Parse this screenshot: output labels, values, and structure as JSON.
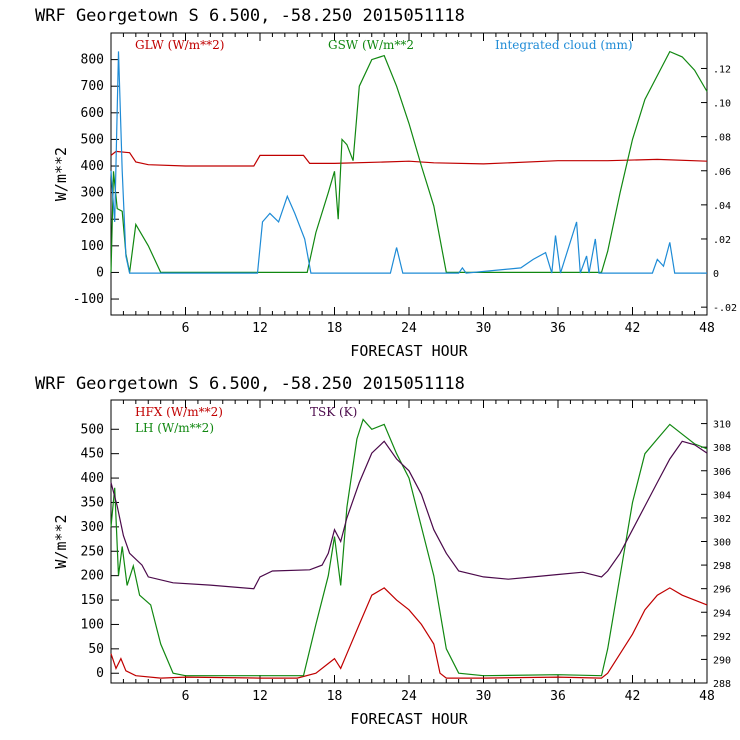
{
  "chart_data": [
    {
      "type": "line",
      "title": "WRF   Georgetown S   6.500, -58.250  2015051118",
      "xlabel": "FORECAST HOUR",
      "ylabel": "W/m**2",
      "xlim": [
        0,
        48
      ],
      "xticks": [
        6,
        12,
        18,
        24,
        30,
        36,
        42,
        48
      ],
      "ylim": [
        -160,
        900
      ],
      "yticks": [
        -100,
        0,
        100,
        200,
        300,
        400,
        500,
        600,
        700,
        800
      ],
      "y2lim": [
        -0.0246,
        0.1408
      ],
      "y2ticks": [
        -0.02,
        0,
        0.02,
        0.04,
        0.06,
        0.08,
        0.1,
        0.12
      ],
      "y2ticklabels": [
        "-.02",
        "0",
        ".02",
        ".04",
        ".06",
        ".08",
        ".10",
        ".12"
      ],
      "series": [
        {
          "name": "GLW (W/m**2)",
          "color": "#c00000",
          "axis": "left",
          "points": [
            [
              0,
              440
            ],
            [
              0.4,
              455
            ],
            [
              1.5,
              450
            ],
            [
              2.0,
              415
            ],
            [
              3,
              405
            ],
            [
              6,
              400
            ],
            [
              11.5,
              400
            ],
            [
              12,
              440
            ],
            [
              15.5,
              440
            ],
            [
              16,
              410
            ],
            [
              18,
              410
            ],
            [
              22,
              415
            ],
            [
              24,
              418
            ],
            [
              26,
              412
            ],
            [
              30,
              408
            ],
            [
              36,
              420
            ],
            [
              40,
              420
            ],
            [
              44,
              425
            ],
            [
              48,
              418
            ]
          ]
        },
        {
          "name": "GSW (W/m**2",
          "color": "#118811",
          "axis": "left",
          "points": [
            [
              0,
              0
            ],
            [
              0.2,
              380
            ],
            [
              0.5,
              240
            ],
            [
              0.9,
              230
            ],
            [
              1.2,
              70
            ],
            [
              1.5,
              0
            ],
            [
              2,
              180
            ],
            [
              3,
              100
            ],
            [
              4,
              0
            ],
            [
              15.8,
              0
            ],
            [
              16.5,
              150
            ],
            [
              17.5,
              300
            ],
            [
              18,
              380
            ],
            [
              18.3,
              200
            ],
            [
              18.6,
              500
            ],
            [
              19,
              480
            ],
            [
              19.5,
              420
            ],
            [
              20,
              700
            ],
            [
              21,
              800
            ],
            [
              22,
              815
            ],
            [
              23,
              700
            ],
            [
              24,
              560
            ],
            [
              25,
              400
            ],
            [
              26,
              250
            ],
            [
              27,
              0
            ],
            [
              39.5,
              0
            ],
            [
              40,
              80
            ],
            [
              41,
              300
            ],
            [
              42,
              500
            ],
            [
              43,
              650
            ],
            [
              44,
              740
            ],
            [
              45,
              830
            ],
            [
              46,
              810
            ],
            [
              47,
              760
            ],
            [
              48,
              680
            ]
          ]
        },
        {
          "name": "Integrated cloud (mm)",
          "color": "#1e8bd6",
          "axis": "right",
          "points": [
            [
              0,
              0.06
            ],
            [
              0.3,
              0.03
            ],
            [
              0.6,
              0.13
            ],
            [
              0.9,
              0.06
            ],
            [
              1.2,
              0.01
            ],
            [
              1.5,
              0
            ],
            [
              11.8,
              0
            ],
            [
              12.2,
              0.03
            ],
            [
              12.8,
              0.035
            ],
            [
              13.5,
              0.03
            ],
            [
              14.2,
              0.045
            ],
            [
              14.8,
              0.035
            ],
            [
              15.6,
              0.02
            ],
            [
              16.1,
              0
            ],
            [
              22.5,
              0
            ],
            [
              23,
              0.015
            ],
            [
              23.5,
              0
            ],
            [
              28,
              0
            ],
            [
              28.3,
              0.003
            ],
            [
              28.6,
              0
            ],
            [
              33,
              0.003
            ],
            [
              34,
              0.008
            ],
            [
              35,
              0.012
            ],
            [
              35.5,
              0
            ],
            [
              35.8,
              0.022
            ],
            [
              36.2,
              0
            ],
            [
              37.5,
              0.03
            ],
            [
              37.8,
              0
            ],
            [
              38.3,
              0.01
            ],
            [
              38.5,
              0
            ],
            [
              39,
              0.02
            ],
            [
              39.3,
              0
            ],
            [
              43.6,
              0
            ],
            [
              44,
              0.008
            ],
            [
              44.5,
              0.004
            ],
            [
              45,
              0.018
            ],
            [
              45.4,
              0
            ],
            [
              48,
              0
            ]
          ]
        }
      ]
    },
    {
      "type": "line",
      "title": "WRF   Georgetown S   6.500, -58.250  2015051118",
      "xlabel": "FORECAST HOUR",
      "ylabel": "W/m**2",
      "xlim": [
        0,
        48
      ],
      "xticks": [
        6,
        12,
        18,
        24,
        30,
        36,
        42,
        48
      ],
      "ylim": [
        -20,
        560
      ],
      "yticks": [
        0,
        50,
        100,
        150,
        200,
        250,
        300,
        350,
        400,
        450,
        500
      ],
      "y2lim": [
        288,
        312
      ],
      "y2ticks": [
        288,
        290,
        292,
        294,
        296,
        298,
        300,
        302,
        304,
        306,
        308,
        310
      ],
      "y2ticklabels": [
        "288",
        "290",
        "292",
        "294",
        "296",
        "298",
        "300",
        "302",
        "304",
        "306",
        "308",
        "310"
      ],
      "series": [
        {
          "name": "HFX (W/m**2)",
          "color": "#c00000",
          "axis": "left",
          "points": [
            [
              0,
              40
            ],
            [
              0.4,
              10
            ],
            [
              0.8,
              30
            ],
            [
              1.2,
              5
            ],
            [
              2,
              -5
            ],
            [
              4,
              -10
            ],
            [
              6,
              -8
            ],
            [
              12,
              -10
            ],
            [
              15,
              -10
            ],
            [
              16.5,
              0
            ],
            [
              17.5,
              20
            ],
            [
              18,
              30
            ],
            [
              18.5,
              10
            ],
            [
              19,
              40
            ],
            [
              20,
              100
            ],
            [
              21,
              160
            ],
            [
              22,
              175
            ],
            [
              23,
              150
            ],
            [
              24,
              130
            ],
            [
              25,
              100
            ],
            [
              26,
              60
            ],
            [
              26.5,
              0
            ],
            [
              27,
              -10
            ],
            [
              30,
              -10
            ],
            [
              36,
              -8
            ],
            [
              39.5,
              -10
            ],
            [
              40,
              0
            ],
            [
              41,
              40
            ],
            [
              42,
              80
            ],
            [
              43,
              130
            ],
            [
              44,
              160
            ],
            [
              45,
              175
            ],
            [
              46,
              160
            ],
            [
              47,
              150
            ],
            [
              48,
              140
            ]
          ]
        },
        {
          "name": "LH  (W/m**2)",
          "color": "#118811",
          "axis": "left",
          "points": [
            [
              0,
              300
            ],
            [
              0.3,
              380
            ],
            [
              0.6,
              200
            ],
            [
              0.9,
              260
            ],
            [
              1.3,
              180
            ],
            [
              1.8,
              220
            ],
            [
              2.3,
              160
            ],
            [
              3.2,
              140
            ],
            [
              4,
              60
            ],
            [
              5,
              0
            ],
            [
              6,
              -5
            ],
            [
              12,
              -5
            ],
            [
              15.5,
              -5
            ],
            [
              16.5,
              100
            ],
            [
              17.5,
              200
            ],
            [
              18,
              280
            ],
            [
              18.5,
              180
            ],
            [
              19,
              340
            ],
            [
              19.8,
              480
            ],
            [
              20.3,
              520
            ],
            [
              21,
              500
            ],
            [
              22,
              510
            ],
            [
              23,
              450
            ],
            [
              24,
              400
            ],
            [
              25,
              300
            ],
            [
              26,
              200
            ],
            [
              27,
              50
            ],
            [
              28,
              0
            ],
            [
              30,
              -5
            ],
            [
              36,
              -3
            ],
            [
              39.5,
              -5
            ],
            [
              40,
              50
            ],
            [
              41,
              200
            ],
            [
              42,
              350
            ],
            [
              43,
              450
            ],
            [
              44,
              480
            ],
            [
              45,
              510
            ],
            [
              46,
              490
            ],
            [
              47,
              470
            ],
            [
              48,
              460
            ]
          ]
        },
        {
          "name": "TSK (K)",
          "color": "#4b0a4b",
          "axis": "right",
          "points": [
            [
              0,
              305
            ],
            [
              0.5,
              303
            ],
            [
              1,
              300.5
            ],
            [
              1.5,
              299
            ],
            [
              2.5,
              298
            ],
            [
              3,
              297
            ],
            [
              5,
              296.5
            ],
            [
              8,
              296.3
            ],
            [
              11.5,
              296
            ],
            [
              12,
              297
            ],
            [
              13,
              297.5
            ],
            [
              16,
              297.6
            ],
            [
              17,
              298
            ],
            [
              17.5,
              299
            ],
            [
              18,
              301
            ],
            [
              18.5,
              300
            ],
            [
              19,
              302
            ],
            [
              20,
              305
            ],
            [
              21,
              307.5
            ],
            [
              22,
              308.5
            ],
            [
              23,
              307
            ],
            [
              24,
              306
            ],
            [
              25,
              304
            ],
            [
              26,
              301
            ],
            [
              27,
              299
            ],
            [
              28,
              297.5
            ],
            [
              30,
              297
            ],
            [
              32,
              296.8
            ],
            [
              34,
              297
            ],
            [
              36,
              297.2
            ],
            [
              38,
              297.4
            ],
            [
              39.5,
              297
            ],
            [
              40,
              297.5
            ],
            [
              41,
              299
            ],
            [
              42,
              301
            ],
            [
              43,
              303
            ],
            [
              44,
              305
            ],
            [
              45,
              307
            ],
            [
              46,
              308.5
            ],
            [
              47,
              308.2
            ],
            [
              48,
              307.5
            ]
          ]
        }
      ]
    }
  ]
}
